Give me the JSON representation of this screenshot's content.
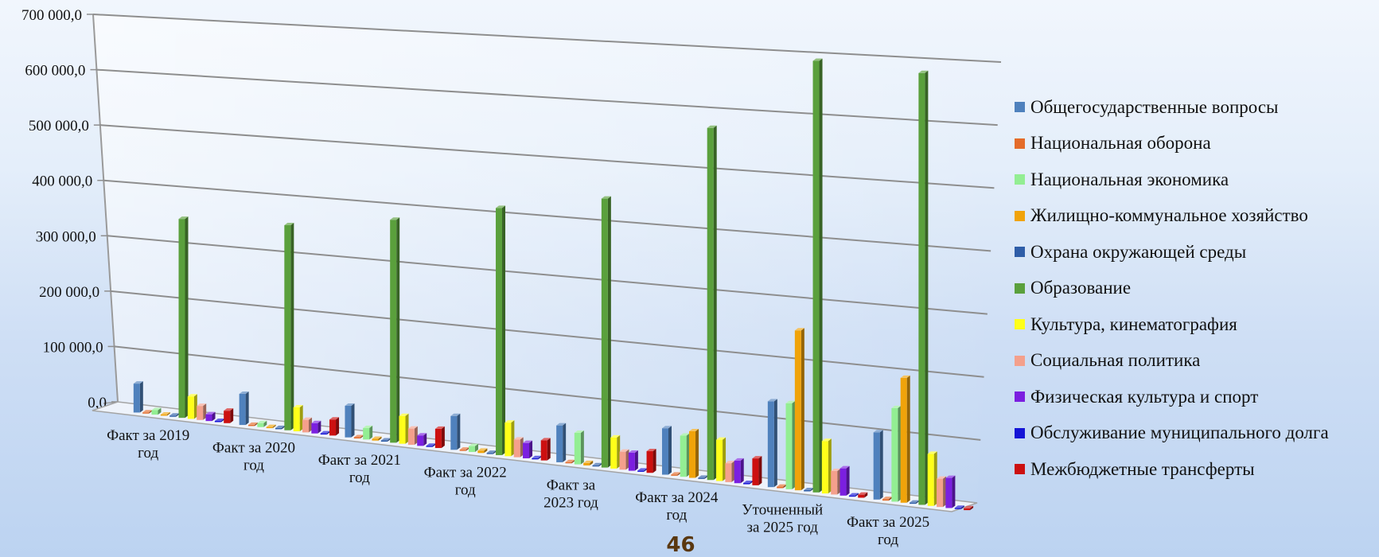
{
  "page_number": "46",
  "chart_data": {
    "type": "bar",
    "title": "",
    "xlabel": "",
    "ylabel": "",
    "ylim": [
      0,
      700000
    ],
    "y_ticks": [
      "0,0",
      "100 000,0",
      "200 000,0",
      "300 000,0",
      "400 000,0",
      "500 000,0",
      "600 000,0",
      "700 000,0"
    ],
    "y_tick_values": [
      0,
      100000,
      200000,
      300000,
      400000,
      500000,
      600000,
      700000
    ],
    "grid": true,
    "legend_position": "right",
    "categories": [
      [
        "Факт за 2019",
        "год"
      ],
      [
        "Факт за 2020",
        "год"
      ],
      [
        "Факт за 2021",
        "год"
      ],
      [
        "Факт за 2022",
        "год"
      ],
      [
        "Факт за",
        "2023 год"
      ],
      [
        "Факт за 2024",
        "год"
      ],
      [
        "Уточненный",
        "за 2025 год"
      ],
      [
        "Факт за 2025",
        "год"
      ]
    ],
    "series": [
      {
        "name": "Общегосударственные вопросы",
        "color": "#4f81bd",
        "values": [
          52000,
          55000,
          55000,
          58000,
          62000,
          77000,
          140000,
          108000
        ]
      },
      {
        "name": "Национальная оборона",
        "color": "#e46c2a",
        "values": [
          1000,
          1200,
          1300,
          1500,
          1800,
          2000,
          2500,
          2500
        ]
      },
      {
        "name": "Национальная экономика",
        "color": "#93ee93",
        "values": [
          8000,
          7000,
          20000,
          10000,
          53000,
          68000,
          140000,
          150000
        ]
      },
      {
        "name": "Жилищно-коммунальное хозяйство",
        "color": "#f0a30a",
        "values": [
          2000,
          2000,
          3000,
          4000,
          4000,
          77000,
          260000,
          200000
        ]
      },
      {
        "name": "Охрана окружающей среды",
        "color": "#2e5da8",
        "values": [
          500,
          500,
          500,
          500,
          500,
          500,
          500,
          500
        ]
      },
      {
        "name": "Образование",
        "color": "#5aa03c",
        "values": [
          355000,
          360000,
          385000,
          420000,
          450000,
          580000,
          700000,
          690000
        ]
      },
      {
        "name": "Культура, кинематография",
        "color": "#ffff1a",
        "values": [
          40000,
          42000,
          48000,
          57000,
          52000,
          68000,
          85000,
          83000
        ]
      },
      {
        "name": "Социальная политика",
        "color": "#f4a08c",
        "values": [
          25000,
          22000,
          28000,
          30000,
          30000,
          31000,
          38000,
          45000
        ]
      },
      {
        "name": "Физическая культура и спорт",
        "color": "#7b1fe0",
        "values": [
          12000,
          18000,
          18000,
          26000,
          30000,
          37000,
          44000,
          48000
        ]
      },
      {
        "name": "Обслуживание муниципального долга",
        "color": "#1414d6",
        "values": [
          500,
          500,
          500,
          500,
          500,
          500,
          500,
          500
        ]
      },
      {
        "name": "Межбюджетные трансферты",
        "color": "#cc1010",
        "values": [
          22000,
          28000,
          33000,
          34000,
          36000,
          44000,
          5000,
          3000
        ]
      }
    ]
  }
}
